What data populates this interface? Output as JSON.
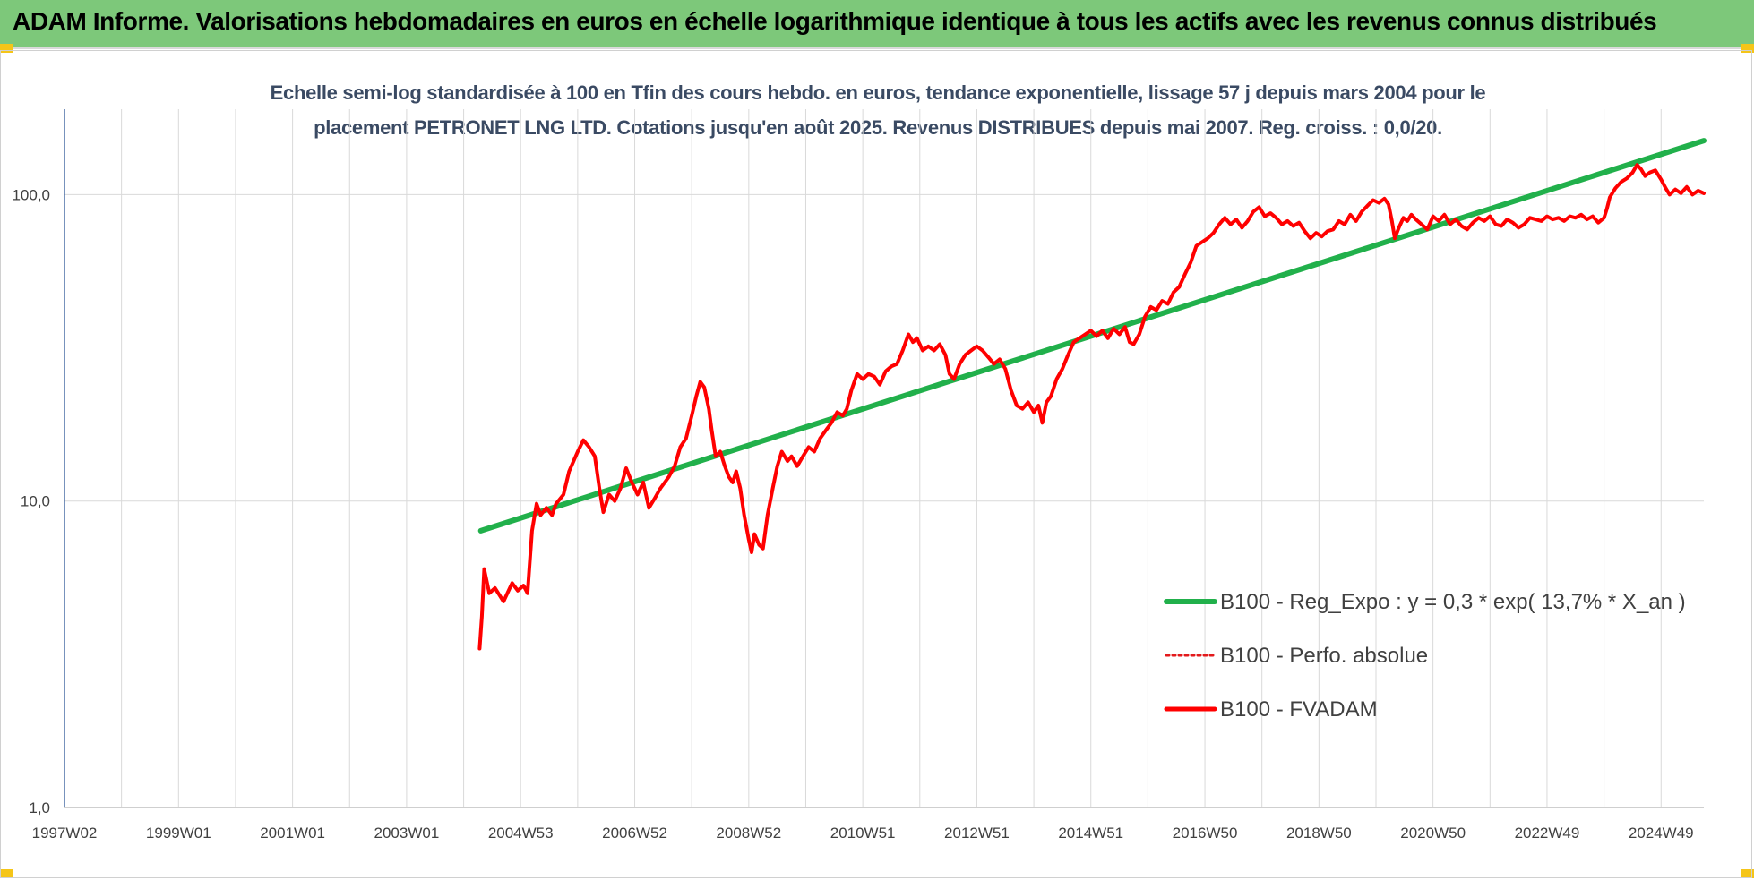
{
  "header": {
    "title": "ADAM Informe. Valorisations hebdomadaires en euros en échelle logarithmique identique à tous les actifs avec les revenus connus distribués"
  },
  "colors": {
    "banner": "#7dc87a",
    "trend": "#21b04b",
    "perf": "#e31a1c",
    "fvadam": "#ff0000",
    "grid": "#d9d9d9",
    "accent": "#f5c518"
  },
  "chart_data": {
    "type": "line",
    "title_lines": [
      "Echelle semi-log standardisée à 100 en Tfin des cours hebdo. en euros, tendance exponentielle, lissage 57 j depuis mars 2004 pour le",
      "placement PETRONET LNG LTD. Cotations jusqu'en août 2025. Revenus DISTRIBUES depuis mai 2007. Reg. croiss. : 0,0/20."
    ],
    "y_scale": "log",
    "ylim": [
      1,
      190
    ],
    "x_range": [
      1997.0,
      2025.75
    ],
    "y_ticks": [
      {
        "value": 1,
        "label": "1,0"
      },
      {
        "value": 10,
        "label": "10,0"
      },
      {
        "value": 100,
        "label": "100,0"
      }
    ],
    "x_ticks": [
      {
        "value": 1997.0,
        "label": "1997W02"
      },
      {
        "value": 1999.0,
        "label": "1999W01"
      },
      {
        "value": 2001.0,
        "label": "2001W01"
      },
      {
        "value": 2003.0,
        "label": "2003W01"
      },
      {
        "value": 2005.0,
        "label": "2004W53"
      },
      {
        "value": 2007.0,
        "label": "2006W52"
      },
      {
        "value": 2009.0,
        "label": "2008W52"
      },
      {
        "value": 2011.0,
        "label": "2010W51"
      },
      {
        "value": 2013.0,
        "label": "2012W51"
      },
      {
        "value": 2015.0,
        "label": "2014W51"
      },
      {
        "value": 2017.0,
        "label": "2016W50"
      },
      {
        "value": 2019.0,
        "label": "2018W50"
      },
      {
        "value": 2021.0,
        "label": "2020W50"
      },
      {
        "value": 2023.0,
        "label": "2022W49"
      },
      {
        "value": 2025.0,
        "label": "2024W49"
      }
    ],
    "grid": true,
    "legend_position": "bottom-right",
    "series": [
      {
        "name": "B100 - Reg_Expo : y = 0,3 * exp( 13,7% *  X_an )",
        "style": "solid-thick",
        "points": [
          [
            2004.3,
            8.0
          ],
          [
            2025.75,
            150.0
          ]
        ]
      },
      {
        "name": "B100 - Perfo. absolue",
        "style": "dotted",
        "points": []
      },
      {
        "name": "B100 - FVADAM",
        "style": "solid",
        "points": [
          [
            2004.28,
            3.3
          ],
          [
            2004.32,
            4.2
          ],
          [
            2004.36,
            6.0
          ],
          [
            2004.45,
            5.0
          ],
          [
            2004.55,
            5.2
          ],
          [
            2004.7,
            4.7
          ],
          [
            2004.85,
            5.4
          ],
          [
            2004.95,
            5.1
          ],
          [
            2005.05,
            5.3
          ],
          [
            2005.12,
            5.0
          ],
          [
            2005.2,
            8.0
          ],
          [
            2005.28,
            9.8
          ],
          [
            2005.35,
            9.0
          ],
          [
            2005.45,
            9.5
          ],
          [
            2005.55,
            9.0
          ],
          [
            2005.62,
            9.8
          ],
          [
            2005.75,
            10.5
          ],
          [
            2005.85,
            12.5
          ],
          [
            2006.0,
            14.5
          ],
          [
            2006.1,
            15.8
          ],
          [
            2006.2,
            15.0
          ],
          [
            2006.3,
            14.0
          ],
          [
            2006.38,
            11.0
          ],
          [
            2006.45,
            9.2
          ],
          [
            2006.55,
            10.5
          ],
          [
            2006.65,
            10.0
          ],
          [
            2006.75,
            11.0
          ],
          [
            2006.85,
            12.8
          ],
          [
            2006.95,
            11.5
          ],
          [
            2007.05,
            10.5
          ],
          [
            2007.15,
            11.5
          ],
          [
            2007.25,
            9.5
          ],
          [
            2007.35,
            10.2
          ],
          [
            2007.45,
            11.0
          ],
          [
            2007.6,
            12.0
          ],
          [
            2007.7,
            13.0
          ],
          [
            2007.8,
            15.0
          ],
          [
            2007.9,
            16.0
          ],
          [
            2008.0,
            19.0
          ],
          [
            2008.08,
            22.0
          ],
          [
            2008.15,
            24.5
          ],
          [
            2008.22,
            23.5
          ],
          [
            2008.3,
            20.0
          ],
          [
            2008.35,
            17.0
          ],
          [
            2008.42,
            14.0
          ],
          [
            2008.5,
            14.5
          ],
          [
            2008.58,
            13.0
          ],
          [
            2008.65,
            12.0
          ],
          [
            2008.72,
            11.5
          ],
          [
            2008.78,
            12.5
          ],
          [
            2008.85,
            11.0
          ],
          [
            2008.92,
            9.0
          ],
          [
            2009.0,
            7.5
          ],
          [
            2009.05,
            6.8
          ],
          [
            2009.1,
            7.8
          ],
          [
            2009.18,
            7.2
          ],
          [
            2009.25,
            7.0
          ],
          [
            2009.33,
            9.0
          ],
          [
            2009.42,
            11.0
          ],
          [
            2009.5,
            13.0
          ],
          [
            2009.58,
            14.5
          ],
          [
            2009.68,
            13.5
          ],
          [
            2009.75,
            14.0
          ],
          [
            2009.85,
            13.0
          ],
          [
            2009.95,
            14.0
          ],
          [
            2010.05,
            15.0
          ],
          [
            2010.15,
            14.5
          ],
          [
            2010.25,
            16.0
          ],
          [
            2010.35,
            17.0
          ],
          [
            2010.45,
            18.0
          ],
          [
            2010.55,
            19.5
          ],
          [
            2010.65,
            19.0
          ],
          [
            2010.72,
            20.0
          ],
          [
            2010.8,
            23.0
          ],
          [
            2010.9,
            26.0
          ],
          [
            2011.0,
            25.0
          ],
          [
            2011.1,
            26.0
          ],
          [
            2011.2,
            25.5
          ],
          [
            2011.3,
            24.0
          ],
          [
            2011.4,
            26.5
          ],
          [
            2011.5,
            27.5
          ],
          [
            2011.6,
            28.0
          ],
          [
            2011.7,
            31.0
          ],
          [
            2011.8,
            35.0
          ],
          [
            2011.88,
            33.0
          ],
          [
            2011.95,
            34.0
          ],
          [
            2012.05,
            31.0
          ],
          [
            2012.15,
            32.0
          ],
          [
            2012.25,
            31.0
          ],
          [
            2012.35,
            32.5
          ],
          [
            2012.45,
            30.0
          ],
          [
            2012.52,
            26.0
          ],
          [
            2012.6,
            25.0
          ],
          [
            2012.7,
            28.0
          ],
          [
            2012.8,
            30.0
          ],
          [
            2012.9,
            31.0
          ],
          [
            2013.0,
            32.0
          ],
          [
            2013.1,
            31.0
          ],
          [
            2013.2,
            29.5
          ],
          [
            2013.3,
            28.0
          ],
          [
            2013.4,
            29.0
          ],
          [
            2013.5,
            27.0
          ],
          [
            2013.6,
            23.0
          ],
          [
            2013.7,
            20.5
          ],
          [
            2013.8,
            20.0
          ],
          [
            2013.9,
            21.0
          ],
          [
            2014.0,
            19.5
          ],
          [
            2014.08,
            20.5
          ],
          [
            2014.15,
            18.0
          ],
          [
            2014.22,
            21.0
          ],
          [
            2014.3,
            22.0
          ],
          [
            2014.4,
            25.0
          ],
          [
            2014.5,
            27.0
          ],
          [
            2014.6,
            30.0
          ],
          [
            2014.7,
            33.0
          ],
          [
            2014.8,
            34.0
          ],
          [
            2014.9,
            35.0
          ],
          [
            2015.0,
            36.0
          ],
          [
            2015.1,
            34.5
          ],
          [
            2015.2,
            36.0
          ],
          [
            2015.3,
            34.0
          ],
          [
            2015.4,
            36.5
          ],
          [
            2015.5,
            35.0
          ],
          [
            2015.6,
            37.0
          ],
          [
            2015.68,
            33.0
          ],
          [
            2015.75,
            32.5
          ],
          [
            2015.85,
            35.0
          ],
          [
            2015.95,
            40.0
          ],
          [
            2016.05,
            43.0
          ],
          [
            2016.15,
            42.0
          ],
          [
            2016.25,
            45.0
          ],
          [
            2016.35,
            44.0
          ],
          [
            2016.45,
            48.0
          ],
          [
            2016.55,
            50.0
          ],
          [
            2016.65,
            55.0
          ],
          [
            2016.75,
            60.0
          ],
          [
            2016.85,
            68.0
          ],
          [
            2016.95,
            70.0
          ],
          [
            2017.05,
            72.0
          ],
          [
            2017.15,
            75.0
          ],
          [
            2017.25,
            80.0
          ],
          [
            2017.35,
            84.0
          ],
          [
            2017.45,
            80.0
          ],
          [
            2017.55,
            83.0
          ],
          [
            2017.65,
            78.0
          ],
          [
            2017.75,
            82.0
          ],
          [
            2017.85,
            88.0
          ],
          [
            2017.95,
            91.0
          ],
          [
            2018.05,
            85.0
          ],
          [
            2018.15,
            87.0
          ],
          [
            2018.25,
            84.0
          ],
          [
            2018.35,
            80.0
          ],
          [
            2018.45,
            82.0
          ],
          [
            2018.55,
            79.0
          ],
          [
            2018.65,
            81.0
          ],
          [
            2018.75,
            76.0
          ],
          [
            2018.85,
            72.0
          ],
          [
            2018.95,
            75.0
          ],
          [
            2019.05,
            73.0
          ],
          [
            2019.15,
            76.0
          ],
          [
            2019.25,
            77.0
          ],
          [
            2019.35,
            82.0
          ],
          [
            2019.45,
            80.0
          ],
          [
            2019.55,
            86.0
          ],
          [
            2019.65,
            82.0
          ],
          [
            2019.75,
            88.0
          ],
          [
            2019.85,
            92.0
          ],
          [
            2019.95,
            96.0
          ],
          [
            2020.05,
            94.0
          ],
          [
            2020.15,
            97.0
          ],
          [
            2020.22,
            93.0
          ],
          [
            2020.28,
            82.0
          ],
          [
            2020.33,
            72.0
          ],
          [
            2020.4,
            78.0
          ],
          [
            2020.48,
            84.0
          ],
          [
            2020.55,
            82.0
          ],
          [
            2020.62,
            86.0
          ],
          [
            2020.7,
            83.0
          ],
          [
            2020.8,
            80.0
          ],
          [
            2020.9,
            77.0
          ],
          [
            2021.0,
            85.0
          ],
          [
            2021.1,
            82.0
          ],
          [
            2021.2,
            86.0
          ],
          [
            2021.3,
            80.0
          ],
          [
            2021.4,
            83.0
          ],
          [
            2021.5,
            79.0
          ],
          [
            2021.6,
            77.0
          ],
          [
            2021.7,
            81.0
          ],
          [
            2021.8,
            84.0
          ],
          [
            2021.9,
            82.0
          ],
          [
            2022.0,
            85.0
          ],
          [
            2022.1,
            80.0
          ],
          [
            2022.2,
            79.0
          ],
          [
            2022.3,
            83.0
          ],
          [
            2022.4,
            81.0
          ],
          [
            2022.5,
            78.0
          ],
          [
            2022.6,
            80.0
          ],
          [
            2022.7,
            84.0
          ],
          [
            2022.8,
            83.0
          ],
          [
            2022.9,
            82.0
          ],
          [
            2023.0,
            85.0
          ],
          [
            2023.1,
            83.0
          ],
          [
            2023.2,
            84.0
          ],
          [
            2023.3,
            82.0
          ],
          [
            2023.4,
            85.0
          ],
          [
            2023.5,
            84.0
          ],
          [
            2023.6,
            86.0
          ],
          [
            2023.7,
            83.0
          ],
          [
            2023.8,
            85.0
          ],
          [
            2023.9,
            81.0
          ],
          [
            2024.0,
            84.0
          ],
          [
            2024.05,
            90.0
          ],
          [
            2024.1,
            98.0
          ],
          [
            2024.2,
            105.0
          ],
          [
            2024.3,
            110.0
          ],
          [
            2024.4,
            113.0
          ],
          [
            2024.5,
            118.0
          ],
          [
            2024.58,
            125.0
          ],
          [
            2024.65,
            121.0
          ],
          [
            2024.72,
            115.0
          ],
          [
            2024.8,
            118.0
          ],
          [
            2024.9,
            120.0
          ],
          [
            2025.0,
            112.0
          ],
          [
            2025.08,
            105.0
          ],
          [
            2025.15,
            100.0
          ],
          [
            2025.25,
            104.0
          ],
          [
            2025.35,
            101.0
          ],
          [
            2025.45,
            106.0
          ],
          [
            2025.55,
            100.0
          ],
          [
            2025.65,
            103.0
          ],
          [
            2025.75,
            101.0
          ]
        ]
      }
    ]
  }
}
